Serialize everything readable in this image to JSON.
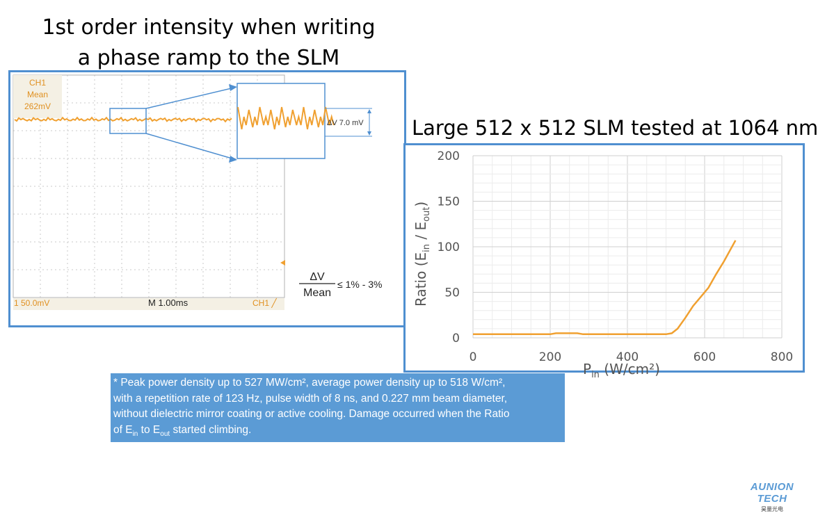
{
  "left_title": {
    "line1": "1st order intensity when writing",
    "line2": "a phase ramp to the SLM"
  },
  "scope": {
    "ch1_label": "CH1",
    "mean_label": "Mean",
    "mean_value": "262mV",
    "delta_label": "ΔV 7.0 mV",
    "scale_label": "1 50.0mV",
    "time_label": "M 1.00ms",
    "trigger_label": "CH1 ╱",
    "formula_numerator": "ΔV",
    "formula_denominator": "Mean",
    "formula_result": "≤ 1% - 3%",
    "trace_color": "#f0a030"
  },
  "right_title": "Large 512 x 512 SLM tested at 1064 nm",
  "chart_data": {
    "type": "line",
    "title": "Large 512 x 512 SLM tested at 1064 nm",
    "xlabel_main": "P",
    "xlabel_sub": "in",
    "xlabel_rest": " (W/cm²)",
    "ylabel_pre": "Ratio (E",
    "ylabel_sub1": "in",
    "ylabel_mid": " / E",
    "ylabel_sub2": "out",
    "ylabel_post": ")",
    "xlim": [
      0,
      800
    ],
    "ylim": [
      0,
      200
    ],
    "xticks": [
      "0",
      "200",
      "400",
      "600",
      "800"
    ],
    "yticks": [
      "0",
      "50",
      "100",
      "150",
      "200"
    ],
    "grid": true,
    "series": [
      {
        "color": "#f0a030",
        "x": [
          0,
          100,
          200,
          215,
          270,
          285,
          300,
          400,
          500,
          515,
          530,
          550,
          570,
          590,
          610,
          630,
          650,
          680
        ],
        "y": [
          4,
          4,
          4,
          5,
          5,
          4,
          4,
          4,
          4,
          5,
          10,
          22,
          35,
          45,
          55,
          70,
          84,
          107
        ]
      }
    ]
  },
  "note": {
    "line1": "* Peak power density up to 527 MW/cm², average power density up to 518 W/cm²,",
    "line2": "with a repetition rate of 123 Hz, pulse width of 8 ns, and 0.227 mm beam diameter,",
    "line3": "without dielectric mirror coating or active cooling. Damage occurred when the Ratio",
    "line4_pre": "of E",
    "line4_sub1": "in",
    "line4_mid": " to E",
    "line4_sub2": "out",
    "line4_post": " started climbing."
  },
  "logo": {
    "text": "AUNION TECH",
    "sub": "昊量光电"
  }
}
